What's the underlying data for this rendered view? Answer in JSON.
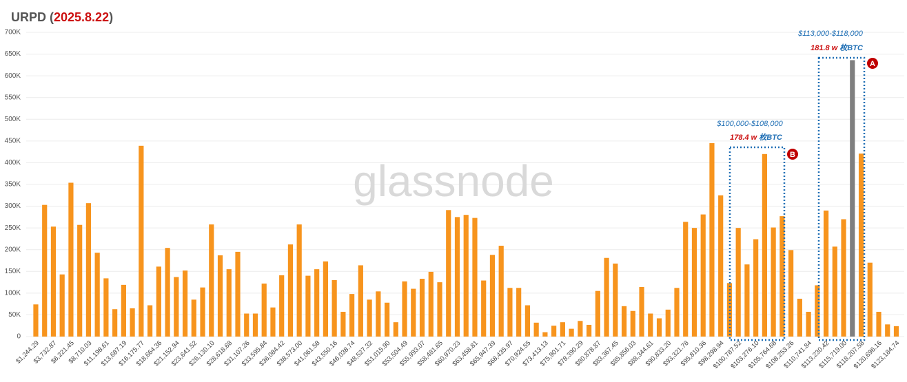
{
  "chart_data": {
    "type": "bar",
    "title_parts": [
      "URPD (",
      "2025.8.22",
      ")"
    ],
    "categories": [
      "$1,244.29",
      null,
      "$3,732.87",
      null,
      "$6,221.45",
      null,
      "$8,710.03",
      null,
      "$11,198.61",
      null,
      "$13,687.19",
      null,
      "$16,175.77",
      null,
      "$18,664.36",
      null,
      "$21,152.94",
      null,
      "$23,641.52",
      null,
      "$26,130.10",
      null,
      "$28,618.68",
      null,
      "$31,107.26",
      null,
      "$33,595.84",
      null,
      "$36,084.42",
      null,
      "$38,573.00",
      null,
      "$41,061.58",
      null,
      "$43,550.16",
      null,
      "$46,038.74",
      null,
      "$48,527.32",
      null,
      "$51,015.90",
      null,
      "$53,504.49",
      null,
      "$55,993.07",
      null,
      "$58,481.65",
      null,
      "$60,970.23",
      null,
      "$63,458.81",
      null,
      "$65,947.39",
      null,
      "$68,435.97",
      null,
      "$70,924.55",
      null,
      "$73,413.13",
      null,
      "$75,901.71",
      null,
      "$78,390.29",
      null,
      "$80,878.87",
      null,
      "$83,367.45",
      null,
      "$85,856.03",
      null,
      "$88,344.61",
      null,
      "$90,833.20",
      null,
      "$93,321.78",
      null,
      "$95,810.36",
      null,
      "$98,298.94",
      null,
      "$100,787.52",
      null,
      "$103,276.10",
      null,
      "$105,764.68",
      null,
      "$108,253.26",
      null,
      "$110,741.84",
      null,
      "$113,230.42",
      null,
      "$115,719.00",
      null,
      "$118,207.58",
      null,
      "$120,696.16",
      null,
      "$123,184.74"
    ],
    "values": [
      74000,
      303000,
      253000,
      143000,
      354000,
      257000,
      307000,
      193000,
      134000,
      63000,
      119000,
      65000,
      439000,
      72000,
      161000,
      204000,
      137000,
      152000,
      85000,
      113000,
      258000,
      187000,
      155000,
      195000,
      53000,
      53000,
      122000,
      67000,
      141000,
      212000,
      258000,
      140000,
      155000,
      173000,
      130000,
      57000,
      98000,
      164000,
      85000,
      104000,
      78000,
      33000,
      127000,
      110000,
      133000,
      149000,
      125000,
      291000,
      275000,
      280000,
      273000,
      129000,
      188000,
      209000,
      112000,
      112000,
      72000,
      32000,
      10000,
      25000,
      33000,
      18000,
      36000,
      27000,
      105000,
      181000,
      168000,
      70000,
      59000,
      114000,
      53000,
      42000,
      62000,
      112000,
      264000,
      250000,
      281000,
      445000,
      325000,
      123000,
      250000,
      166000,
      224000,
      420000,
      251000,
      277000,
      199000,
      87000,
      57000,
      118000,
      290000,
      207000,
      270000,
      636000,
      421000,
      170000,
      57000,
      28000,
      24000
    ],
    "color": "#f7941d",
    "colors": [
      "#f7941d",
      "#f7941d",
      "#f7941d",
      "#f7941d",
      "#f7941d",
      "#f7941d",
      "#f7941d",
      "#f7941d",
      "#f7941d",
      "#f7941d",
      "#f7941d",
      "#f7941d",
      "#f7941d",
      "#f7941d",
      "#f7941d",
      "#f7941d",
      "#f7941d",
      "#f7941d",
      "#f7941d",
      "#f7941d",
      "#f7941d",
      "#f7941d",
      "#f7941d",
      "#f7941d",
      "#f7941d",
      "#f7941d",
      "#f7941d",
      "#f7941d",
      "#f7941d",
      "#f7941d",
      "#f7941d",
      "#f7941d",
      "#f7941d",
      "#f7941d",
      "#f7941d",
      "#f7941d",
      "#f7941d",
      "#f7941d",
      "#f7941d",
      "#f7941d",
      "#f7941d",
      "#f7941d",
      "#f7941d",
      "#f7941d",
      "#f7941d",
      "#f7941d",
      "#f7941d",
      "#f7941d",
      "#f7941d",
      "#f7941d",
      "#f7941d",
      "#f7941d",
      "#f7941d",
      "#f7941d",
      "#f7941d",
      "#f7941d",
      "#f7941d",
      "#f7941d",
      "#f7941d",
      "#f7941d",
      "#f7941d",
      "#f7941d",
      "#f7941d",
      "#f7941d",
      "#f7941d",
      "#f7941d",
      "#f7941d",
      "#f7941d",
      "#f7941d",
      "#f7941d",
      "#f7941d",
      "#f7941d",
      "#f7941d",
      "#f7941d",
      "#f7941d",
      "#f7941d",
      "#f7941d",
      "#f7941d",
      "#f7941d",
      "#f7941d",
      "#f7941d",
      "#f7941d",
      "#f7941d",
      "#f7941d",
      "#f7941d",
      "#f7941d",
      "#f7941d",
      "#f7941d",
      "#f7941d",
      "#f7941d",
      "#f7941d",
      "#f7941d",
      "#f7941d",
      "#7f7f7f",
      "#f7941d",
      "#f7941d",
      "#f7941d",
      "#f7941d",
      "#f7941d"
    ],
    "ylim": [
      0,
      700000
    ],
    "yticks": [
      0,
      {
        "value": 50000,
        "label": "50K"
      },
      {
        "value": 100000,
        "label": "100K"
      },
      {
        "value": 150000,
        "label": "150K"
      },
      {
        "value": 200000,
        "label": "200K"
      },
      {
        "value": 250000,
        "label": "250K"
      },
      {
        "value": 300000,
        "label": "300K"
      },
      {
        "value": 350000,
        "label": "350K"
      },
      {
        "value": 400000,
        "label": "400K"
      },
      {
        "value": 450000,
        "label": "450K"
      },
      {
        "value": 500000,
        "label": "500K"
      },
      {
        "value": 550000,
        "label": "550K"
      },
      {
        "value": 600000,
        "label": "600K"
      },
      {
        "value": 650000,
        "label": "650K"
      },
      {
        "value": 700000,
        "label": "700K"
      }
    ],
    "grid": true,
    "watermark": "glassnode",
    "annotations": [
      {
        "range": "$113,000-$118,000",
        "amount": "181.8 w",
        "unit": "枚BTC",
        "marker": "A"
      },
      {
        "range": "$100,000-$108,000",
        "amount": "178.4 w",
        "unit": "枚BTC",
        "marker": "B"
      }
    ]
  }
}
